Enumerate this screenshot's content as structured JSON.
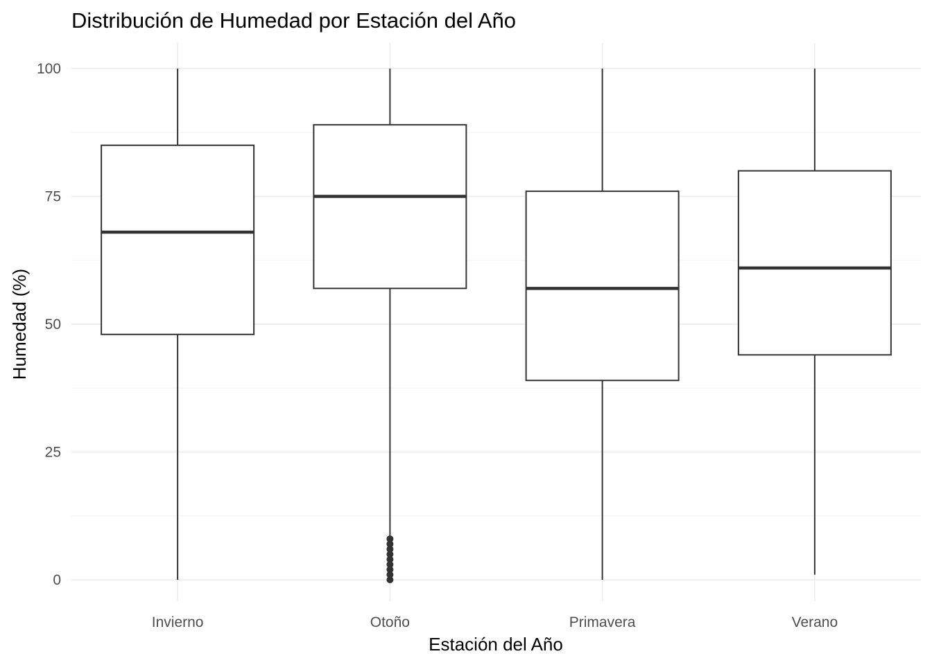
{
  "chart_data": {
    "type": "boxplot",
    "title": "Distribución de Humedad por Estación del Año",
    "xlabel": "Estación del Año",
    "ylabel": "Humedad (%)",
    "ylim": [
      -4,
      105
    ],
    "yticks": [
      0,
      25,
      50,
      75,
      100
    ],
    "ytick_labels": [
      "0",
      "25",
      "50",
      "75",
      "100"
    ],
    "grid": true,
    "categories": [
      "Invierno",
      "Otoño",
      "Primavera",
      "Verano"
    ],
    "boxes": [
      {
        "category": "Invierno",
        "min": 0,
        "q1": 48,
        "median": 68,
        "q3": 85,
        "max": 100,
        "outliers": []
      },
      {
        "category": "Otoño",
        "min": 8,
        "q1": 57,
        "median": 75,
        "q3": 89,
        "max": 100,
        "outliers": [
          0,
          1,
          2,
          3,
          4,
          5,
          6,
          7,
          8
        ]
      },
      {
        "category": "Primavera",
        "min": 0,
        "q1": 39,
        "median": 57,
        "q3": 76,
        "max": 100,
        "outliers": []
      },
      {
        "category": "Verano",
        "min": 1,
        "q1": 44,
        "median": 61,
        "q3": 80,
        "max": 100,
        "outliers": []
      }
    ]
  }
}
